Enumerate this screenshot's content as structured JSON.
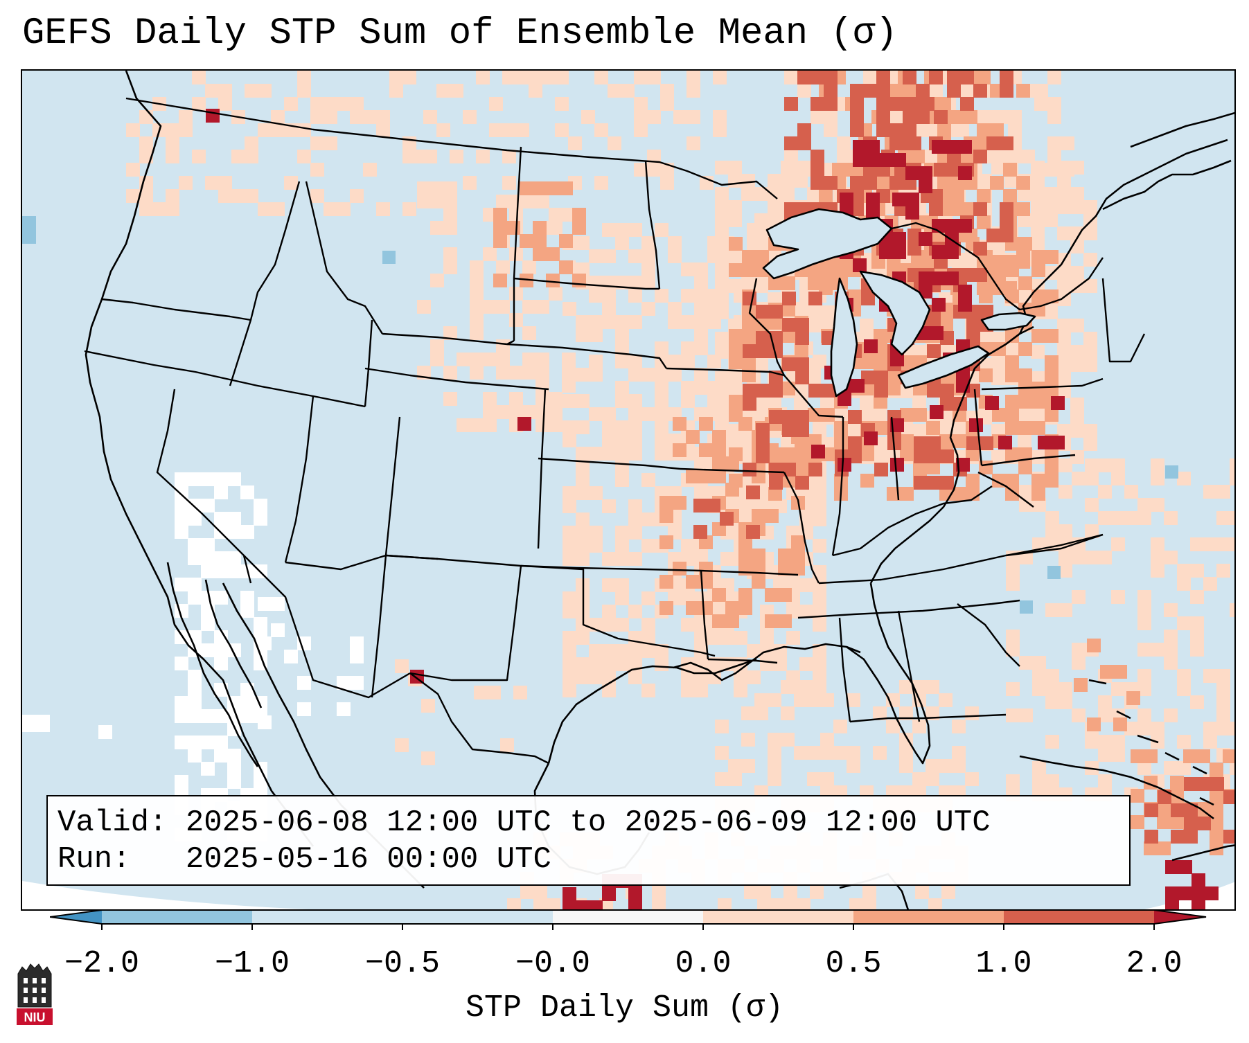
{
  "title": "GEFS Daily STP Sum of Ensemble Mean (σ)",
  "info": {
    "valid_label": "Valid:",
    "valid_value": "2025-06-08 12:00 UTC to 2025-06-09 12:00 UTC",
    "run_label": "Run:",
    "run_value": "2025-05-16 00:00 UTC"
  },
  "colorbar": {
    "label": "STP Daily Sum (σ)",
    "ticks": [
      "−2.0",
      "−1.0",
      "−0.5",
      "−0.0",
      "0.0",
      "0.5",
      "1.0",
      "2.0"
    ],
    "colors": [
      "#4393c3",
      "#92c5de",
      "#d1e5f0",
      "#f7f7f7",
      "#fddbc7",
      "#f4a582",
      "#d6604d",
      "#b2182b"
    ]
  },
  "logo": {
    "text": "NIU"
  },
  "colors": {
    "ocean": "#d1e5f0",
    "land_neutral": "#d1e5f0",
    "light_positive": "#fddbc7",
    "mid_positive": "#f4a582",
    "high_positive": "#d6604d",
    "max_positive": "#b2182b",
    "negative_light": "#92c5de",
    "border": "#000000"
  }
}
